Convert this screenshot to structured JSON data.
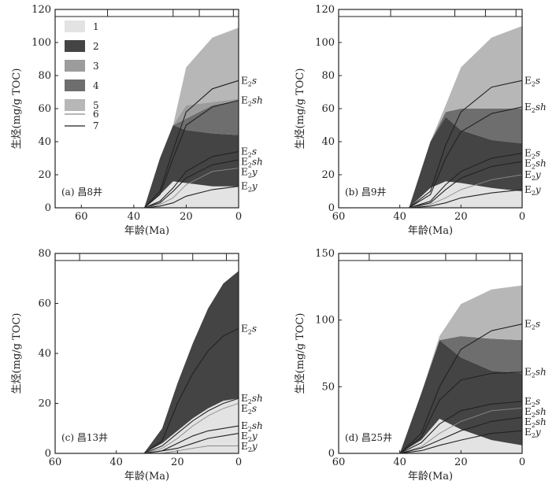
{
  "colors": {
    "1": "#e3e3e3",
    "2": "#444444",
    "3": "#9c9c9c",
    "4": "#6e6e6e",
    "5": "#b7b7b7",
    "line6": "#8a8a8a",
    "line7": "#222222"
  },
  "legend": [
    "1",
    "2",
    "3",
    "4",
    "5",
    "6",
    "7"
  ],
  "chart_data": [
    {
      "type": "area",
      "panel_label": "(a) 昌8井",
      "ylabel": "生烃(mg/g TOC)",
      "xlabel": "年龄(Ma)",
      "xlim": [
        70,
        0
      ],
      "ylim": [
        0,
        120
      ],
      "xticks": [
        60,
        40,
        20,
        0
      ],
      "yticks": [
        0,
        20,
        40,
        60,
        80,
        100,
        120
      ],
      "top_bar_ticks": [
        50,
        25,
        15,
        2
      ],
      "legend": true,
      "x": [
        36,
        30,
        25,
        20,
        10,
        0
      ],
      "bands": [
        {
          "class": "1",
          "lower": [
            0,
            0,
            0,
            0,
            0,
            0
          ],
          "upper": [
            0,
            8,
            16,
            15,
            13,
            13
          ]
        },
        {
          "class": "2",
          "lower": [
            0,
            8,
            16,
            15,
            13,
            13
          ],
          "upper": [
            0,
            30,
            50,
            47,
            45,
            44
          ]
        },
        {
          "class": "4",
          "lower": [
            0,
            30,
            50,
            47,
            45,
            44
          ],
          "upper": [
            0,
            30,
            50,
            54,
            62,
            65
          ]
        },
        {
          "class": "3",
          "lower": [
            0,
            30,
            50,
            54,
            62,
            65
          ],
          "upper": [
            0,
            30,
            50,
            62,
            64,
            66
          ]
        },
        {
          "class": "5",
          "lower": [
            0,
            30,
            50,
            62,
            64,
            66
          ],
          "upper": [
            0,
            30,
            50,
            85,
            103,
            109
          ]
        }
      ],
      "lines": [
        {
          "name": "E2s",
          "kind": "7",
          "y": [
            0,
            10,
            35,
            58,
            72,
            77
          ]
        },
        {
          "name": "E2sh",
          "kind": "7",
          "y": [
            0,
            8,
            30,
            50,
            61,
            65
          ]
        },
        {
          "name": "E2s",
          "kind": "7",
          "y": [
            0,
            4,
            12,
            22,
            31,
            34
          ]
        },
        {
          "name": "E2sh",
          "kind": "7",
          "y": [
            0,
            3,
            10,
            18,
            26,
            29
          ]
        },
        {
          "name": "E2y",
          "kind": "6",
          "y": [
            0,
            2,
            6,
            14,
            22,
            24
          ]
        },
        {
          "name": "E2y",
          "kind": "7",
          "y": [
            0,
            1,
            3,
            7,
            11,
            13
          ]
        }
      ],
      "series_labels": [
        "E2s",
        "E2sh",
        "E2s",
        "E2sh",
        "E2y",
        "E2y"
      ]
    },
    {
      "type": "area",
      "panel_label": "(b) 昌9井",
      "ylabel": "生烃(mg/g TOC)",
      "xlabel": "年龄(Ma)",
      "xlim": [
        60,
        0
      ],
      "ylim": [
        0,
        120
      ],
      "xticks": [
        60,
        40,
        20,
        0
      ],
      "yticks": [
        0,
        20,
        40,
        60,
        80,
        100,
        120
      ],
      "top_bar_ticks": [
        43,
        22,
        12,
        2
      ],
      "legend": false,
      "x": [
        37,
        30,
        25,
        20,
        10,
        0
      ],
      "bands": [
        {
          "class": "1",
          "lower": [
            0,
            0,
            0,
            0,
            0,
            0
          ],
          "upper": [
            0,
            12,
            16,
            15,
            12,
            10
          ]
        },
        {
          "class": "2",
          "lower": [
            0,
            12,
            16,
            15,
            12,
            10
          ],
          "upper": [
            0,
            40,
            55,
            47,
            41,
            39
          ]
        },
        {
          "class": "4",
          "lower": [
            0,
            40,
            55,
            47,
            41,
            39
          ],
          "upper": [
            0,
            40,
            58,
            60,
            60,
            60
          ]
        },
        {
          "class": "5",
          "lower": [
            0,
            40,
            58,
            60,
            60,
            60
          ],
          "upper": [
            0,
            40,
            62,
            85,
            103,
            110
          ]
        }
      ],
      "lines": [
        {
          "name": "E2s",
          "kind": "7",
          "y": [
            0,
            10,
            38,
            58,
            73,
            77
          ]
        },
        {
          "name": "E2sh",
          "kind": "7",
          "y": [
            0,
            8,
            30,
            46,
            57,
            61
          ]
        },
        {
          "name": "E2s",
          "kind": "7",
          "y": [
            0,
            4,
            14,
            22,
            30,
            33
          ]
        },
        {
          "name": "E2sh",
          "kind": "7",
          "y": [
            0,
            3,
            11,
            18,
            25,
            28
          ]
        },
        {
          "name": "E2y",
          "kind": "6",
          "y": [
            0,
            2,
            6,
            11,
            17,
            20
          ]
        },
        {
          "name": "E2y",
          "kind": "7",
          "y": [
            0,
            1,
            3,
            6,
            9,
            11
          ]
        }
      ],
      "series_labels": [
        "E2s",
        "E2sh",
        "E2s",
        "E2sh",
        "E2y",
        "E2y"
      ]
    },
    {
      "type": "area",
      "panel_label": "(c) 昌13井",
      "ylabel": "生烃(mg/g TOC)",
      "xlabel": "年龄(Ma)",
      "xlim": [
        60,
        0
      ],
      "ylim": [
        0,
        80
      ],
      "xticks": [
        60,
        40,
        20,
        0
      ],
      "yticks": [
        0,
        20,
        40,
        60,
        80
      ],
      "top_bar_ticks": [
        52,
        25,
        15,
        4
      ],
      "legend": false,
      "x": [
        31,
        25,
        20,
        15,
        10,
        5,
        0
      ],
      "bands": [
        {
          "class": "1",
          "lower": [
            0,
            0,
            0,
            0,
            0,
            0,
            0
          ],
          "upper": [
            0,
            4,
            9,
            14,
            18,
            21,
            22
          ]
        },
        {
          "class": "2",
          "lower": [
            0,
            4,
            9,
            14,
            18,
            21,
            22
          ],
          "upper": [
            0,
            10,
            28,
            44,
            58,
            68,
            73
          ]
        }
      ],
      "lines": [
        {
          "name": "E2s",
          "kind": "7",
          "y": [
            0,
            5,
            20,
            32,
            41,
            47,
            50
          ]
        },
        {
          "name": "E2sh",
          "kind": "7",
          "y": [
            0,
            3,
            8,
            13,
            17,
            20,
            22
          ]
        },
        {
          "name": "E2s",
          "kind": "6",
          "y": [
            0,
            2,
            6,
            11,
            15,
            18,
            20
          ]
        },
        {
          "name": "E2sh",
          "kind": "7",
          "y": [
            0,
            1,
            4,
            7,
            9,
            10,
            11
          ]
        },
        {
          "name": "E2y",
          "kind": "7",
          "y": [
            0,
            1,
            2,
            4,
            6,
            7,
            8
          ]
        },
        {
          "name": "E2y",
          "kind": "6",
          "y": [
            0,
            0,
            1,
            2,
            3,
            3,
            3
          ]
        }
      ],
      "series_labels": [
        "E2s",
        "E2sh",
        "E2s",
        "E2sh",
        "E2y",
        "E2y"
      ]
    },
    {
      "type": "area",
      "panel_label": "(d) 昌25井",
      "ylabel": "生烃(mg/g TOC)",
      "xlabel": "年龄(Ma)",
      "xlim": [
        60,
        0
      ],
      "ylim": [
        0,
        150
      ],
      "xticks": [
        60,
        40,
        20,
        0
      ],
      "yticks": [
        0,
        50,
        100,
        150
      ],
      "top_bar_ticks": [
        50,
        25,
        15,
        4
      ],
      "legend": false,
      "x": [
        40,
        33,
        27,
        20,
        10,
        0
      ],
      "bands": [
        {
          "class": "1",
          "lower": [
            0,
            0,
            0,
            0,
            0,
            0
          ],
          "upper": [
            0,
            10,
            26,
            18,
            10,
            6
          ]
        },
        {
          "class": "2",
          "lower": [
            0,
            10,
            26,
            18,
            10,
            6
          ],
          "upper": [
            0,
            45,
            85,
            72,
            62,
            60
          ]
        },
        {
          "class": "4",
          "lower": [
            0,
            45,
            85,
            72,
            62,
            60
          ],
          "upper": [
            0,
            45,
            85,
            88,
            86,
            85
          ]
        },
        {
          "class": "5",
          "lower": [
            0,
            45,
            85,
            88,
            86,
            85
          ],
          "upper": [
            0,
            45,
            88,
            112,
            123,
            126
          ]
        }
      ],
      "lines": [
        {
          "name": "E2s",
          "kind": "7",
          "y": [
            0,
            15,
            50,
            78,
            92,
            97
          ]
        },
        {
          "name": "E2sh",
          "kind": "7",
          "y": [
            0,
            12,
            40,
            55,
            60,
            61
          ]
        },
        {
          "name": "E2s",
          "kind": "7",
          "y": [
            0,
            8,
            22,
            32,
            37,
            39
          ]
        },
        {
          "name": "E2sh",
          "kind": "6",
          "y": [
            0,
            5,
            15,
            24,
            32,
            34
          ]
        },
        {
          "name": "E2sh",
          "kind": "7",
          "y": [
            0,
            4,
            10,
            17,
            24,
            27
          ]
        },
        {
          "name": "E2y",
          "kind": "7",
          "y": [
            0,
            2,
            6,
            10,
            15,
            17
          ]
        }
      ],
      "series_labels": [
        "E2s",
        "E2sh",
        "E2s",
        "E2sh",
        "E2sh",
        "E2y"
      ]
    }
  ]
}
